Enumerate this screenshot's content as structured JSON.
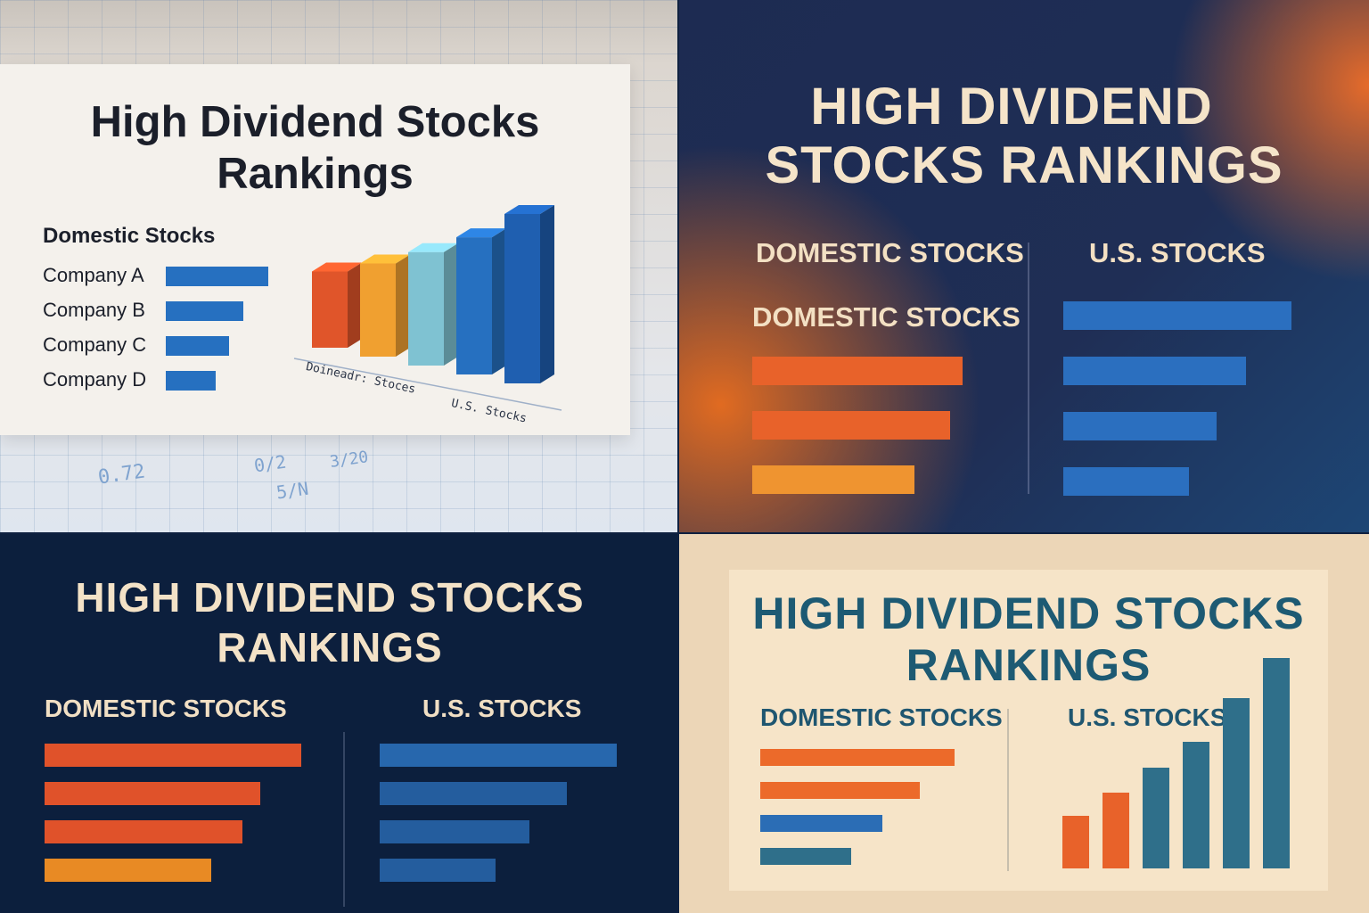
{
  "panels": [
    {
      "title_line1": "High Dividend Stocks",
      "title_line2": "Rankings",
      "section_label": "Domestic Stocks",
      "axis_label_left": "Doineadr: Stoces",
      "axis_label_right": "U.S. Stocks",
      "background_numbers": [
        "0.72",
        "3/20",
        "0/2",
        "5/N"
      ]
    },
    {
      "title_line1": "HIGH DIVIDEND",
      "title_line2": "STOCKS RANKINGS",
      "header_left": "DOMESTIC STOCKS",
      "header_right": "U.S. STOCKS",
      "subheader_left": "DOMESTIC STOCKS"
    },
    {
      "title_line1": "HIGH DIVIDEND STOCKS",
      "title_line2": "RANKINGS",
      "header_left": "DOMESTIC STOCKS",
      "header_right": "U.S. STOCKS"
    },
    {
      "title_line1": "HIGH DIVIDEND STOCKS",
      "title_line2": "RANKINGS",
      "header_left": "DOMESTIC STOCKS",
      "header_right": "U.S. STOCKS"
    }
  ],
  "colors": {
    "orange": "#e8622a",
    "amber": "#f0a030",
    "light_blue": "#7fc2d2",
    "blue": "#2670c0",
    "dark_blue": "#1e5fa8",
    "teal": "#2f6f8a"
  },
  "chart_data": [
    {
      "type": "bar",
      "orientation": "horizontal",
      "title": "Domestic Stocks",
      "categories": [
        "Company A",
        "Company B",
        "Company C",
        "Company D"
      ],
      "values": [
        100,
        76,
        62,
        49
      ]
    },
    {
      "type": "bar",
      "orientation": "vertical",
      "title": "High Dividend Stocks Rankings",
      "xlabel": "Doineadr: Stoces / U.S. Stocks",
      "values": [
        45,
        55,
        67,
        81,
        100
      ],
      "colors": [
        "#e0552a",
        "#f0a030",
        "#7fc2d2",
        "#2670c0",
        "#1f5fb0"
      ]
    },
    {
      "type": "bar",
      "orientation": "horizontal",
      "title": "DOMESTIC STOCKS",
      "values": [
        100,
        94,
        77
      ],
      "colors": [
        "#e8622a",
        "#e8622a",
        "#ef9430"
      ]
    },
    {
      "type": "bar",
      "orientation": "horizontal",
      "title": "U.S. STOCKS",
      "values": [
        100,
        80,
        67,
        55
      ],
      "colors": [
        "#2b6fbf",
        "#2b6fbf",
        "#2b6fbf",
        "#2b6fbf"
      ]
    },
    {
      "type": "bar",
      "orientation": "horizontal",
      "title": "DOMESTIC STOCKS",
      "values": [
        100,
        84,
        77,
        65
      ],
      "colors": [
        "#e0522a",
        "#e0522a",
        "#e0522a",
        "#e88a24"
      ]
    },
    {
      "type": "bar",
      "orientation": "horizontal",
      "title": "U.S. STOCKS",
      "values": [
        100,
        79,
        63,
        49
      ],
      "colors": [
        "#2767ad",
        "#245d9e",
        "#245d9e",
        "#245d9e"
      ]
    },
    {
      "type": "bar",
      "orientation": "horizontal",
      "title": "DOMESTIC STOCKS",
      "values": [
        100,
        82,
        63,
        47
      ],
      "colors": [
        "#ec6a2a",
        "#ec6a2a",
        "#2b6db5",
        "#2f6f8a"
      ]
    },
    {
      "type": "bar",
      "orientation": "vertical",
      "title": "U.S. STOCKS",
      "values": [
        25,
        36,
        48,
        60,
        81,
        100
      ],
      "colors": [
        "#e8622a",
        "#e8622a",
        "#2f6f8a",
        "#2f6f8a",
        "#2f6f8a",
        "#2f6f8a"
      ]
    }
  ]
}
